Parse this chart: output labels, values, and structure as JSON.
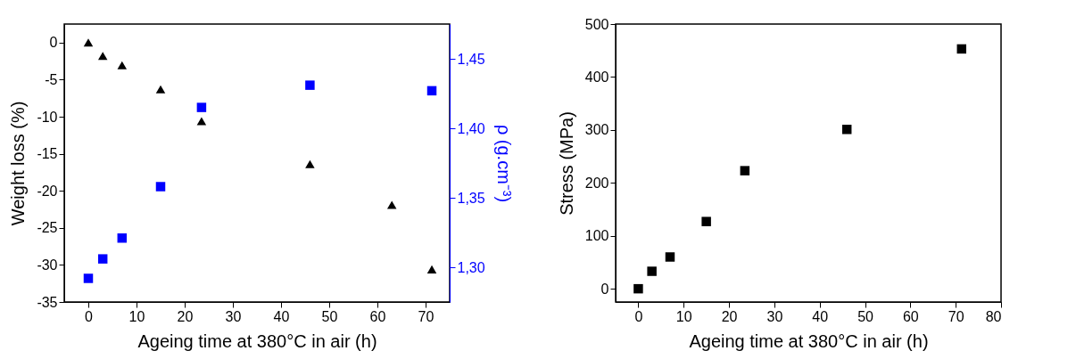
{
  "chart_data": [
    {
      "type": "scatter",
      "xlabel": "Ageing time at 380°C in air (h)",
      "ylabel": "Weight loss (%)",
      "y2label": "ρ (g.cm⁻³)",
      "x": [
        0,
        3,
        7,
        15,
        23.5,
        46,
        63,
        71.3
      ],
      "xlim": [
        -5,
        75
      ],
      "xticks": [
        0,
        10,
        20,
        30,
        40,
        50,
        60,
        70
      ],
      "ylim": [
        -35,
        2.5
      ],
      "yticks": [
        -35,
        -30,
        -25,
        -20,
        -15,
        -10,
        -5,
        0
      ],
      "y2lim": [
        1.275,
        1.475
      ],
      "y2ticks": [
        {
          "value": 1.3,
          "label": "1,30"
        },
        {
          "value": 1.35,
          "label": "1,35"
        },
        {
          "value": 1.4,
          "label": "1,40"
        },
        {
          "value": 1.45,
          "label": "1,45"
        }
      ],
      "grid": false,
      "series": [
        {
          "color": "#000000",
          "marker": "triangle",
          "values": [
            0,
            -1.8,
            -3.05,
            -6.3,
            -10.6,
            -16.4,
            -21.9,
            -30.6
          ]
        },
        {
          "color": "#0000ff",
          "marker": "square",
          "axis": "y2",
          "x": [
            0,
            3,
            7,
            15,
            23.5,
            46,
            71.3
          ],
          "values": [
            1.292,
            1.306,
            1.321,
            1.358,
            1.415,
            1.431,
            1.427
          ]
        }
      ]
    },
    {
      "type": "scatter",
      "xlabel": "Ageing time at 380°C in air (h)",
      "ylabel": "Stress (MPa)",
      "x": [
        0,
        3,
        7,
        15,
        23.5,
        46,
        71.3
      ],
      "xlim": [
        -5,
        80
      ],
      "xticks": [
        0,
        10,
        20,
        30,
        40,
        50,
        60,
        70,
        80
      ],
      "ylim": [
        -25,
        500
      ],
      "yticks": [
        0,
        100,
        200,
        300,
        400,
        500
      ],
      "grid": false,
      "series": [
        {
          "color": "#000000",
          "marker": "square",
          "values": [
            0,
            33,
            60,
            127,
            223,
            301,
            453
          ]
        }
      ]
    }
  ]
}
